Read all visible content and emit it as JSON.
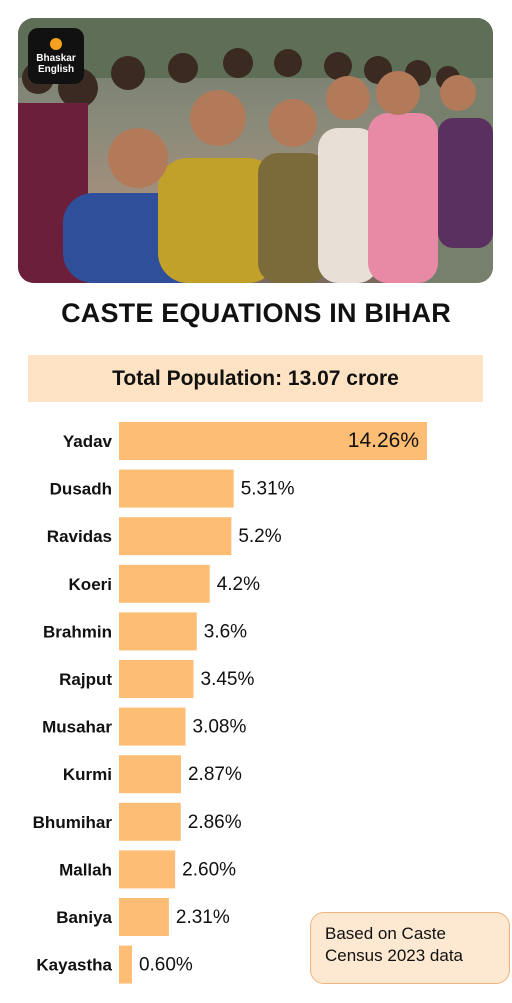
{
  "logo": {
    "line1": "Bhaskar",
    "line2": "English"
  },
  "title": "CASTE EQUATIONS IN BIHAR",
  "total_population": "Total Population: 13.07 crore",
  "note": {
    "line1": "Based on Caste",
    "line2": "Census 2023 data"
  },
  "colors": {
    "bar": "#fdbd74",
    "total_bg": "#fde3c3",
    "note_bg": "#fde8d2",
    "note_border": "#f3b37a"
  },
  "chart_data": {
    "type": "bar",
    "orientation": "horizontal",
    "title": "CASTE EQUATIONS IN BIHAR",
    "categories": [
      "Yadav",
      "Dusadh",
      "Ravidas",
      "Koeri",
      "Brahmin",
      "Rajput",
      "Musahar",
      "Kurmi",
      "Bhumihar",
      "Mallah",
      "Baniya",
      "Kayastha"
    ],
    "values": [
      14.26,
      5.31,
      5.2,
      4.2,
      3.6,
      3.45,
      3.08,
      2.87,
      2.86,
      2.6,
      2.31,
      0.6
    ],
    "labels": [
      "14.26%",
      "5.31%",
      "5.2%",
      "4.2%",
      "3.6%",
      "3.45%",
      "3.08%",
      "2.87%",
      "2.86%",
      "2.60%",
      "2.31%",
      "0.60%"
    ],
    "xlim": [
      0,
      14.26
    ],
    "grid": false
  }
}
